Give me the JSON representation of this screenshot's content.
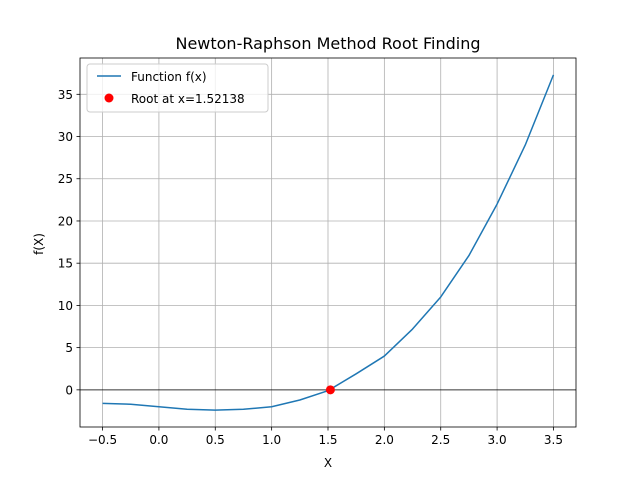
{
  "chart_data": {
    "type": "line",
    "title": "Newton-Raphson Method Root Finding",
    "xlabel": "X",
    "ylabel": "f(X)",
    "xlim": [
      -0.7,
      3.7
    ],
    "ylim": [
      -4.4,
      39.3
    ],
    "xticks": [
      -0.5,
      0.0,
      0.5,
      1.0,
      1.5,
      2.0,
      2.5,
      3.0,
      3.5
    ],
    "xtick_labels": [
      "−0.5",
      "0.0",
      "0.5",
      "1.0",
      "1.5",
      "2.0",
      "2.5",
      "3.0",
      "3.5"
    ],
    "yticks": [
      0,
      5,
      10,
      15,
      20,
      25,
      30,
      35
    ],
    "ytick_labels": [
      "0",
      "5",
      "10",
      "15",
      "20",
      "25",
      "30",
      "35"
    ],
    "grid": true,
    "legend_position": "top-left",
    "series": [
      {
        "name": "Function f(x)",
        "color": "#1f77b4",
        "x": [
          -0.5,
          -0.25,
          0.0,
          0.25,
          0.5,
          0.75,
          1.0,
          1.25,
          1.5,
          1.75,
          2.0,
          2.25,
          2.5,
          2.75,
          3.0,
          3.25,
          3.5
        ],
        "y": [
          -1.6,
          -1.7,
          -2.0,
          -2.3,
          -2.4,
          -2.3,
          -2.0,
          -1.2,
          -0.1,
          1.9,
          4.0,
          7.2,
          11.0,
          15.9,
          22.0,
          29.0,
          37.3
        ]
      }
    ],
    "markers": [
      {
        "name": "Root at x=1.52138",
        "color": "#ff0000",
        "x": 1.52138,
        "y": 0.0
      }
    ],
    "hline": {
      "y": 0,
      "color": "#000000"
    }
  }
}
